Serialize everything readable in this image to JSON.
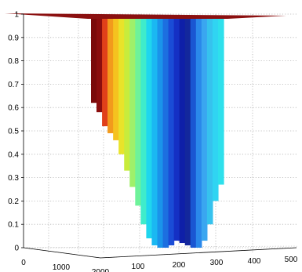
{
  "chart_data": {
    "type": "area",
    "title": "",
    "xlabel": "",
    "ylabel": "",
    "zlim": [
      0,
      1
    ],
    "z_ticks": [
      "0",
      "0.1",
      "0.2",
      "0.3",
      "0.4",
      "0.5",
      "0.6",
      "0.7",
      "0.8",
      "0.9",
      "1"
    ],
    "x_ticks": [
      "0",
      "1000",
      "2000"
    ],
    "y_ticks": [
      "100",
      "200",
      "300",
      "400",
      "500"
    ],
    "grid": true,
    "colormap": "jet",
    "slices": [
      {
        "z_bottom": 0.62,
        "z_top": 0.98,
        "color": "#7a0a0a"
      },
      {
        "z_bottom": 0.58,
        "z_top": 0.98,
        "color": "#8b0d0d"
      },
      {
        "z_bottom": 0.52,
        "z_top": 0.98,
        "color": "#e0401a"
      },
      {
        "z_bottom": 0.49,
        "z_top": 0.98,
        "color": "#f29a1c"
      },
      {
        "z_bottom": 0.46,
        "z_top": 0.98,
        "color": "#f5c21f"
      },
      {
        "z_bottom": 0.4,
        "z_top": 0.98,
        "color": "#e9e32a"
      },
      {
        "z_bottom": 0.33,
        "z_top": 0.98,
        "color": "#c8ec3c"
      },
      {
        "z_bottom": 0.26,
        "z_top": 0.98,
        "color": "#9ff06a"
      },
      {
        "z_bottom": 0.18,
        "z_top": 0.98,
        "color": "#6ef29a"
      },
      {
        "z_bottom": 0.1,
        "z_top": 0.98,
        "color": "#3feccb"
      },
      {
        "z_bottom": 0.04,
        "z_top": 0.98,
        "color": "#1fd6ee"
      },
      {
        "z_bottom": 0.01,
        "z_top": 0.98,
        "color": "#1ab8f2"
      },
      {
        "z_bottom": 0.0,
        "z_top": 0.98,
        "color": "#1a94ea"
      },
      {
        "z_bottom": 0.0,
        "z_top": 0.98,
        "color": "#1c6fe0"
      },
      {
        "z_bottom": 0.01,
        "z_top": 0.98,
        "color": "#1a4cd6"
      },
      {
        "z_bottom": 0.03,
        "z_top": 0.98,
        "color": "#1530c4"
      },
      {
        "z_bottom": 0.02,
        "z_top": 0.98,
        "color": "#0e1fa8"
      },
      {
        "z_bottom": 0.01,
        "z_top": 0.98,
        "color": "#13279c"
      },
      {
        "z_bottom": 0.0,
        "z_top": 0.98,
        "color": "#1a56d2"
      },
      {
        "z_bottom": 0.0,
        "z_top": 0.98,
        "color": "#2a88ea"
      },
      {
        "z_bottom": 0.03,
        "z_top": 0.98,
        "color": "#3aa6f0"
      },
      {
        "z_bottom": 0.1,
        "z_top": 0.98,
        "color": "#36c2ee"
      },
      {
        "z_bottom": 0.2,
        "z_top": 0.98,
        "color": "#30d4f2"
      },
      {
        "z_bottom": 0.27,
        "z_top": 0.98,
        "color": "#2ee0ec"
      }
    ],
    "top_plane_color": "#8b1010"
  }
}
